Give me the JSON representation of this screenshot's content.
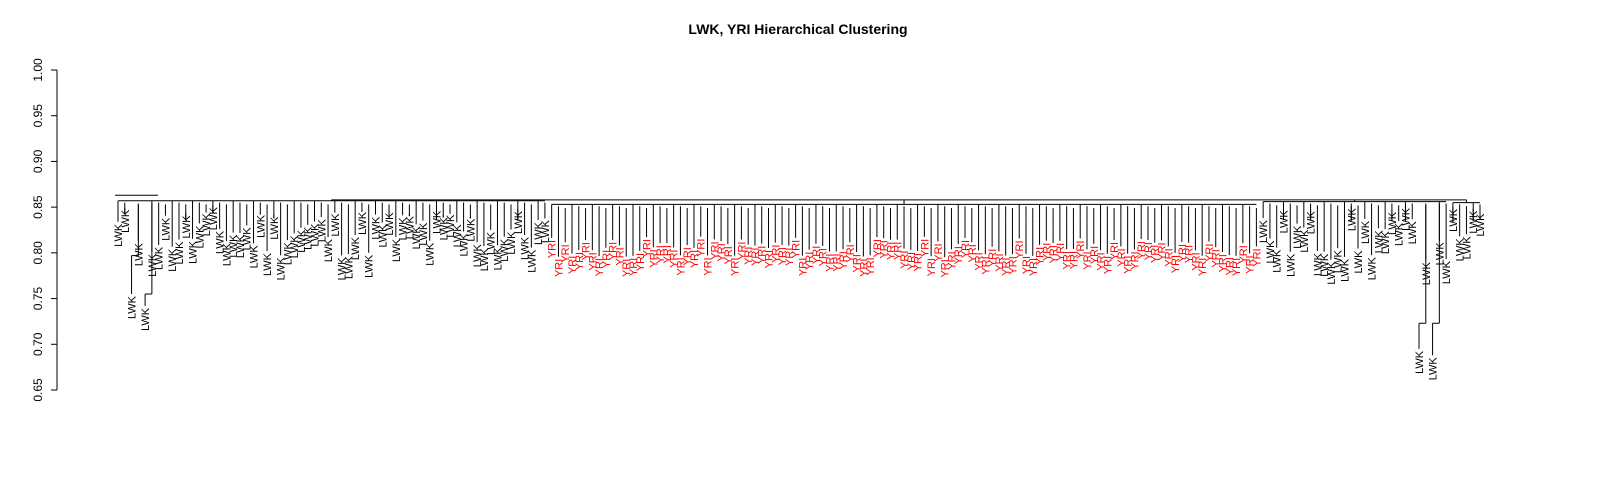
{
  "chart_data": {
    "type": "dendrogram",
    "title": "LWK, YRI Hierarchical Clustering",
    "xlabel": "",
    "ylabel": "",
    "ylim": [
      0.65,
      1.0
    ],
    "yticks": [
      "0.65",
      "0.70",
      "0.75",
      "0.80",
      "0.85",
      "0.90",
      "0.95",
      "1.00"
    ],
    "grid": false,
    "legend": "none",
    "colors": {
      "LWK": "#000000",
      "YRI": "#ff0000",
      "branch": "#000000"
    },
    "root_height": 0.858,
    "clusters": [
      {
        "name": "left LWK cluster",
        "label": "LWK",
        "count": 62,
        "merge_height": 0.857,
        "leaf_range": [
          0.795,
          0.855
        ]
      },
      {
        "name": "YRI cluster",
        "label": "YRI",
        "count": 105,
        "merge_height": 0.853,
        "leaf_range": [
          0.795,
          0.818
        ]
      },
      {
        "name": "right LWK cluster",
        "label": "LWK",
        "count": 26,
        "merge_height": 0.856,
        "leaf_range": [
          0.79,
          0.853
        ]
      },
      {
        "name": "far-right LWK cluster",
        "label": "LWK",
        "count": 5,
        "merge_height": 0.855,
        "leaf_range": [
          0.81,
          0.852
        ]
      }
    ],
    "outliers": [
      {
        "label": "LWK",
        "leaf_height": 0.755,
        "merge_height": 0.797
      },
      {
        "label": "LWK",
        "leaf_height": 0.742,
        "merge_height": 0.755
      },
      {
        "label": "LWK",
        "leaf_height": 0.695,
        "merge_height": 0.723
      },
      {
        "label": "LWK",
        "leaf_height": 0.688,
        "merge_height": 0.723
      }
    ]
  }
}
